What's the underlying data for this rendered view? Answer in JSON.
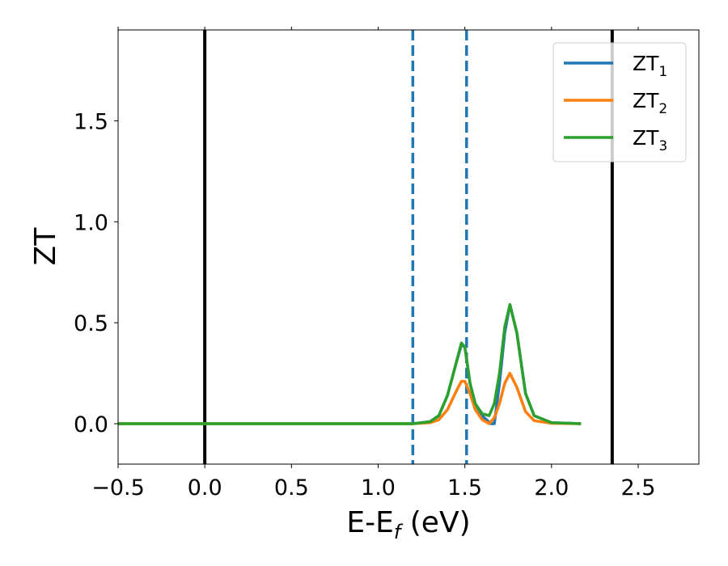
{
  "chart_data": {
    "type": "line",
    "title": "",
    "xlabel_main": "E-E",
    "xlabel_sub": "f",
    "xlabel_unit": " (eV)",
    "ylabel": "ZT",
    "xlim": [
      -0.5,
      2.85
    ],
    "ylim": [
      -0.2,
      1.95
    ],
    "x_ticks": [
      -0.5,
      0.0,
      0.5,
      1.0,
      1.5,
      2.0,
      2.5
    ],
    "x_tick_labels": [
      "−0.5",
      "0.0",
      "0.5",
      "1.0",
      "1.5",
      "2.0",
      "2.5"
    ],
    "y_ticks": [
      0.0,
      0.5,
      1.0,
      1.5
    ],
    "y_tick_labels": [
      "0.0",
      "0.5",
      "1.0",
      "1.5"
    ],
    "grid": false,
    "legend_position": "top-right",
    "vertical_lines": [
      {
        "x": 0.0,
        "style": "solid",
        "color": "#000000"
      },
      {
        "x": 2.35,
        "style": "solid",
        "color": "#000000"
      },
      {
        "x": 1.2,
        "style": "dashed",
        "color": "#1f77b4"
      },
      {
        "x": 1.51,
        "style": "dashed",
        "color": "#1f77b4"
      }
    ],
    "series": [
      {
        "name_main": "ZT",
        "name_sub": "1",
        "color": "#1f77b4",
        "x": [
          -0.5,
          1.2,
          1.3,
          1.35,
          1.4,
          1.45,
          1.48,
          1.5,
          1.53,
          1.56,
          1.6,
          1.65,
          1.67,
          1.7,
          1.73,
          1.76,
          1.8,
          1.85,
          1.9,
          2.0,
          2.17
        ],
        "y": [
          0.0,
          0.0,
          0.01,
          0.04,
          0.14,
          0.3,
          0.39,
          0.38,
          0.2,
          0.1,
          0.04,
          0.0,
          0.0,
          0.2,
          0.45,
          0.59,
          0.45,
          0.15,
          0.04,
          0.005,
          0.0
        ]
      },
      {
        "name_main": "ZT",
        "name_sub": "2",
        "color": "#ff7f0e",
        "x": [
          -0.5,
          1.2,
          1.3,
          1.35,
          1.4,
          1.45,
          1.48,
          1.5,
          1.53,
          1.56,
          1.6,
          1.64,
          1.67,
          1.7,
          1.73,
          1.76,
          1.8,
          1.85,
          1.9,
          2.0,
          2.17
        ],
        "y": [
          0.0,
          0.0,
          0.005,
          0.02,
          0.07,
          0.16,
          0.21,
          0.21,
          0.15,
          0.07,
          0.02,
          0.0,
          0.03,
          0.1,
          0.2,
          0.25,
          0.18,
          0.06,
          0.015,
          0.002,
          0.0
        ]
      },
      {
        "name_main": "ZT",
        "name_sub": "3",
        "color": "#2ca02c",
        "x": [
          -0.5,
          1.2,
          1.3,
          1.35,
          1.4,
          1.45,
          1.48,
          1.5,
          1.53,
          1.56,
          1.6,
          1.64,
          1.67,
          1.7,
          1.73,
          1.76,
          1.8,
          1.85,
          1.9,
          2.0,
          2.17
        ],
        "y": [
          0.0,
          0.0,
          0.01,
          0.04,
          0.14,
          0.3,
          0.4,
          0.38,
          0.2,
          0.1,
          0.05,
          0.04,
          0.1,
          0.25,
          0.48,
          0.59,
          0.45,
          0.15,
          0.04,
          0.005,
          0.0
        ]
      }
    ]
  }
}
